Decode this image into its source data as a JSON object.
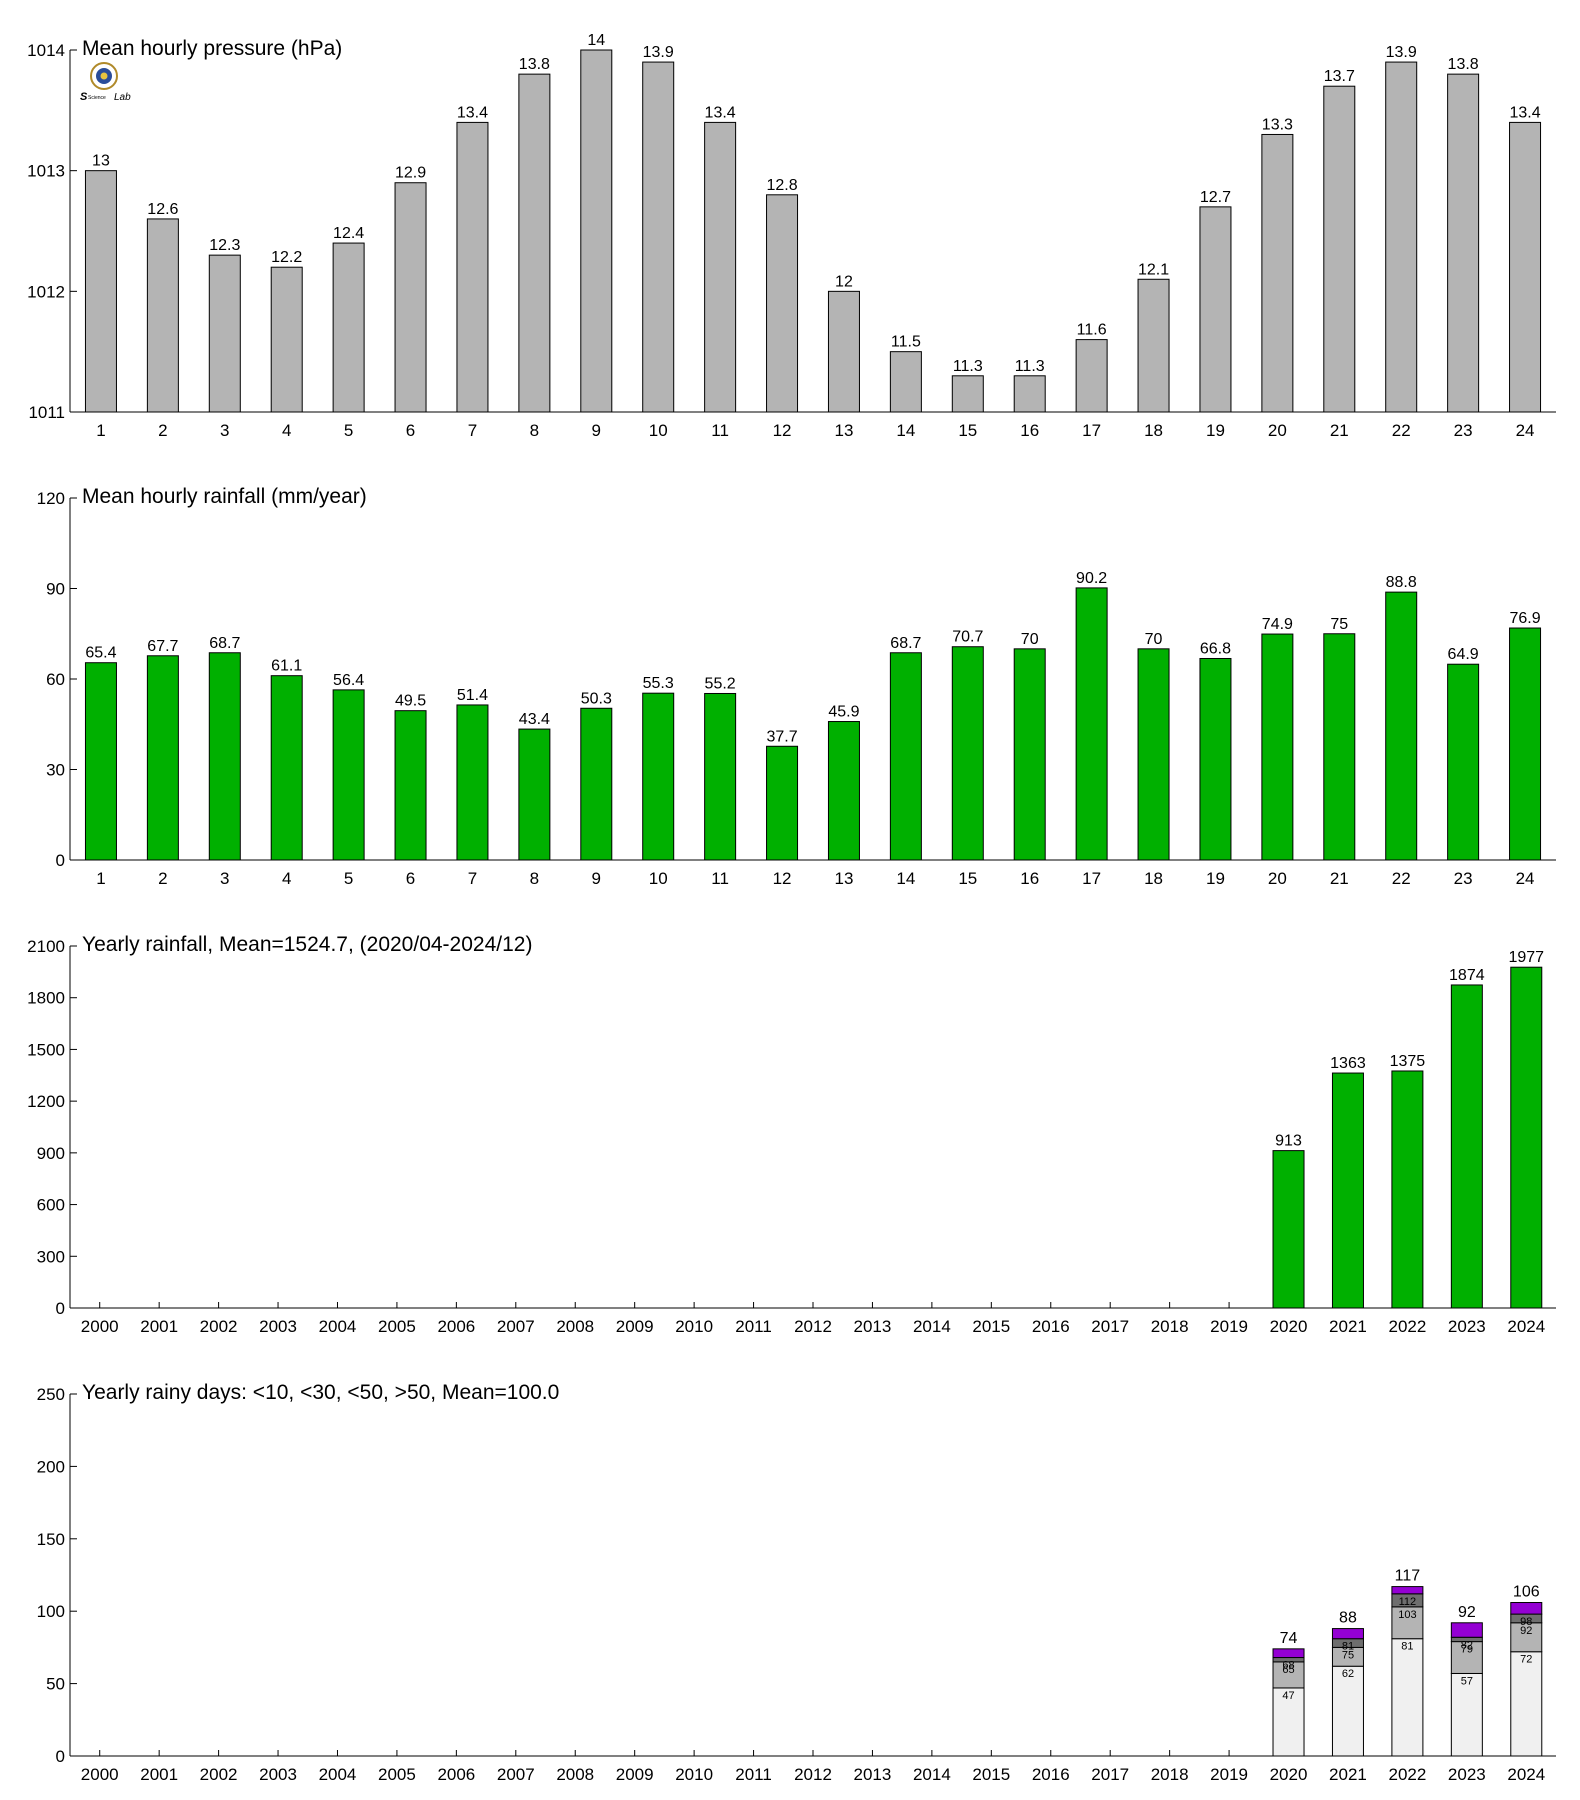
{
  "colors": {
    "pressure": "#b4b4b4",
    "rainfall": "#00b000",
    "days_lt10": "#f0f0f0",
    "days_lt30": "#b4b4b4",
    "days_lt50": "#6e6e6e",
    "days_gt50": "#9400d3"
  },
  "logo": {
    "text": "Lab"
  },
  "chart_data": [
    {
      "type": "bar",
      "title": "Mean hourly pressure (hPa)",
      "categories": [
        "1",
        "2",
        "3",
        "4",
        "5",
        "6",
        "7",
        "8",
        "9",
        "10",
        "11",
        "12",
        "13",
        "14",
        "15",
        "16",
        "17",
        "18",
        "19",
        "20",
        "21",
        "22",
        "23",
        "24"
      ],
      "values": [
        1013.0,
        1012.6,
        1012.3,
        1012.2,
        1012.4,
        1012.9,
        1013.4,
        1013.8,
        1014.0,
        1013.9,
        1013.4,
        1012.8,
        1012.0,
        1011.5,
        1011.3,
        1011.3,
        1011.6,
        1012.1,
        1012.7,
        1013.3,
        1013.7,
        1013.9,
        1013.8,
        1013.4
      ],
      "labels": [
        "13",
        "12.6",
        "12.3",
        "12.2",
        "12.4",
        "12.9",
        "13.4",
        "13.8",
        "14",
        "13.9",
        "13.4",
        "12.8",
        "12",
        "11.5",
        "11.3",
        "11.3",
        "11.6",
        "12.1",
        "12.7",
        "13.3",
        "13.7",
        "13.9",
        "13.8",
        "13.4"
      ],
      "ylim": [
        1011,
        1014
      ],
      "yticks": [
        1011,
        1012,
        1013,
        1014
      ],
      "ytick_labels": [
        "1011",
        "1012",
        "1013",
        "1014"
      ]
    },
    {
      "type": "bar",
      "title": "Mean hourly rainfall (mm/year)",
      "categories": [
        "1",
        "2",
        "3",
        "4",
        "5",
        "6",
        "7",
        "8",
        "9",
        "10",
        "11",
        "12",
        "13",
        "14",
        "15",
        "16",
        "17",
        "18",
        "19",
        "20",
        "21",
        "22",
        "23",
        "24"
      ],
      "values": [
        65.4,
        67.7,
        68.7,
        61.1,
        56.4,
        49.5,
        51.4,
        43.4,
        50.3,
        55.3,
        55.2,
        37.7,
        45.9,
        68.7,
        70.7,
        70,
        90.2,
        70,
        66.8,
        74.9,
        75,
        88.8,
        64.9,
        76.9
      ],
      "labels": [
        "65.4",
        "67.7",
        "68.7",
        "61.1",
        "56.4",
        "49.5",
        "51.4",
        "43.4",
        "50.3",
        "55.3",
        "55.2",
        "37.7",
        "45.9",
        "68.7",
        "70.7",
        "70",
        "90.2",
        "70",
        "66.8",
        "74.9",
        "75",
        "88.8",
        "64.9",
        "76.9"
      ],
      "ylim": [
        0,
        120
      ],
      "yticks": [
        0,
        30,
        60,
        90,
        120
      ],
      "ytick_labels": [
        "0",
        "30",
        "60",
        "90",
        "120"
      ]
    },
    {
      "type": "bar",
      "title": "Yearly rainfall, Mean=1524.7, (2020/04-2024/12)",
      "categories": [
        "2000",
        "2001",
        "2002",
        "2003",
        "2004",
        "2005",
        "2006",
        "2007",
        "2008",
        "2009",
        "2010",
        "2011",
        "2012",
        "2013",
        "2014",
        "2015",
        "2016",
        "2017",
        "2018",
        "2019",
        "2020",
        "2021",
        "2022",
        "2023",
        "2024"
      ],
      "values": [
        null,
        null,
        null,
        null,
        null,
        null,
        null,
        null,
        null,
        null,
        null,
        null,
        null,
        null,
        null,
        null,
        null,
        null,
        null,
        null,
        913,
        1363,
        1375,
        1874,
        1977
      ],
      "labels": [
        "",
        "",
        "",
        "",
        "",
        "",
        "",
        "",
        "",
        "",
        "",
        "",
        "",
        "",
        "",
        "",
        "",
        "",
        "",
        "",
        "913",
        "1363",
        "1375",
        "1874",
        "1977"
      ],
      "ylim": [
        0,
        2100
      ],
      "yticks": [
        0,
        300,
        600,
        900,
        1200,
        1500,
        1800,
        2100
      ],
      "ytick_labels": [
        "0",
        "300",
        "600",
        "900",
        "1200",
        "1500",
        "1800",
        "2100"
      ]
    },
    {
      "type": "bar",
      "stacked": true,
      "title": "Yearly rainy days: <10, <30, <50, >50, Mean=100.0",
      "categories": [
        "2000",
        "2001",
        "2002",
        "2003",
        "2004",
        "2005",
        "2006",
        "2007",
        "2008",
        "2009",
        "2010",
        "2011",
        "2012",
        "2013",
        "2014",
        "2015",
        "2016",
        "2017",
        "2018",
        "2019",
        "2020",
        "2021",
        "2022",
        "2023",
        "2024"
      ],
      "cumulative": [
        null,
        null,
        null,
        null,
        null,
        null,
        null,
        null,
        null,
        null,
        null,
        null,
        null,
        null,
        null,
        null,
        null,
        null,
        null,
        null,
        [
          47,
          65,
          68,
          74
        ],
        [
          62,
          75,
          81,
          88
        ],
        [
          81,
          103,
          112,
          117
        ],
        [
          57,
          79,
          82,
          92
        ],
        [
          72,
          92,
          98,
          106
        ]
      ],
      "segment_labels": [
        null,
        null,
        null,
        null,
        null,
        null,
        null,
        null,
        null,
        null,
        null,
        null,
        null,
        null,
        null,
        null,
        null,
        null,
        null,
        null,
        [
          "47",
          "65",
          "68"
        ],
        [
          "62",
          "75",
          "81"
        ],
        [
          "81",
          "103",
          "112"
        ],
        [
          "57",
          "79",
          "82"
        ],
        [
          "72",
          "92",
          "98"
        ]
      ],
      "total_labels": [
        "",
        "",
        "",
        "",
        "",
        "",
        "",
        "",
        "",
        "",
        "",
        "",
        "",
        "",
        "",
        "",
        "",
        "",
        "",
        "",
        "74",
        "88",
        "117",
        "92",
        "106"
      ],
      "ylim": [
        0,
        250
      ],
      "yticks": [
        0,
        50,
        100,
        150,
        200,
        250
      ],
      "ytick_labels": [
        "0",
        "50",
        "100",
        "150",
        "200",
        "250"
      ]
    }
  ]
}
